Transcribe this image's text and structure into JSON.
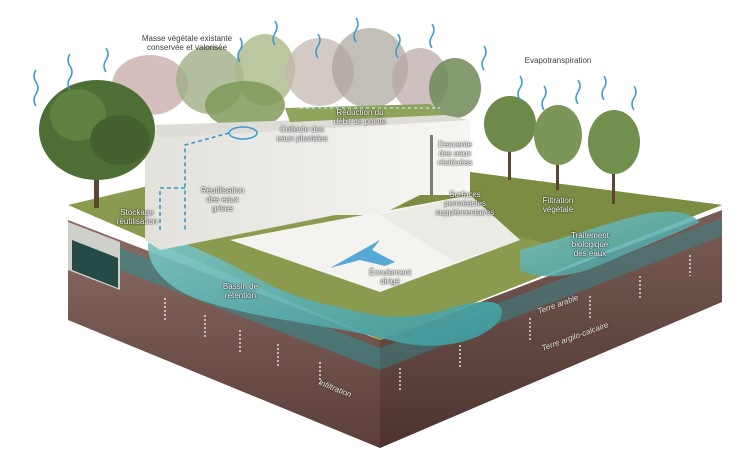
{
  "colors": {
    "water": "#5aaeb0",
    "water_deep": "#2f8f92",
    "building": "#f0eeea",
    "grass": "#8a9a4e",
    "soil_top": "#8b6d64",
    "soil_bottom": "#5b3e3a",
    "arrow_blue": "#3a9ad0"
  },
  "labels": {
    "vegetation": "Masse végétale existante\nconservée et valorisée",
    "evapo": "Evapotranspiration",
    "reduction": "Réduction du\ndébit de pointe",
    "collecte": "Collecte des\neaux pluviales",
    "descente": "Descente\ndes eaux\nrésiduées",
    "reutilisation": "Réutilisation\ndes eaux\ngrises",
    "stockage": "Stockage\nréutilisation",
    "surfaces": "Surfaces\nperméables\nsupplémentaires",
    "filtration": "Filtration\nvégétale",
    "traitement": "Traitement\nbiologique\ndes eaux",
    "ecoulement": "Écoulement\ndirigé",
    "bassin": "Bassin de\nrétention",
    "terre_arable": "Terre arable",
    "terre_argilo": "Terre argilo-calcaire",
    "infiltration": "Infiltration"
  }
}
